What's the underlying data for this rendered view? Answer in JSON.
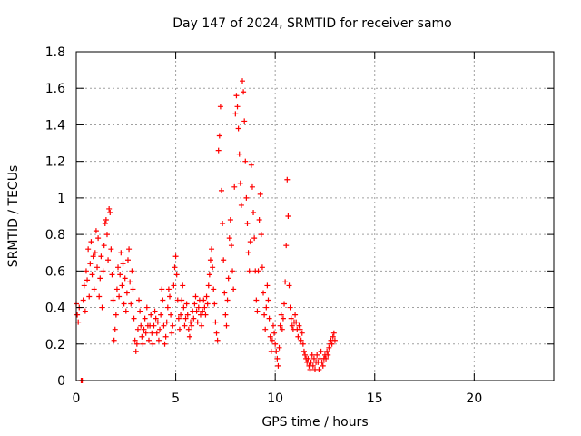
{
  "chart_data": {
    "type": "scatter",
    "title": "Day 147 of 2024, SRMTID for receiver samo",
    "xlabel": "GPS time / hours",
    "ylabel": "SRMTID / TECUs",
    "xlim": [
      0,
      24
    ],
    "ylim": [
      0,
      1.8
    ],
    "xticks": [
      0,
      5,
      10,
      15,
      20
    ],
    "yticks": [
      0,
      0.2,
      0.4,
      0.6,
      0.8,
      1,
      1.2,
      1.4,
      1.6,
      1.8
    ],
    "xtick_labels": [
      "0",
      "5",
      "10",
      "15",
      "20"
    ],
    "ytick_labels": [
      "0",
      "0.2",
      "0.4",
      "0.6",
      "0.8",
      "1",
      "1.2",
      "1.4",
      "1.6",
      "1.8"
    ],
    "grid": true,
    "marker": "+",
    "color": "#ff0000",
    "series": [
      {
        "name": "SRMTID",
        "points": [
          [
            0.0,
            0.42
          ],
          [
            0.05,
            0.36
          ],
          [
            0.1,
            0.32
          ],
          [
            0.15,
            0.4
          ],
          [
            0.25,
            0.0
          ],
          [
            0.3,
            0.0
          ],
          [
            0.35,
            0.44
          ],
          [
            0.4,
            0.52
          ],
          [
            0.45,
            0.38
          ],
          [
            0.5,
            0.6
          ],
          [
            0.55,
            0.55
          ],
          [
            0.6,
            0.72
          ],
          [
            0.65,
            0.46
          ],
          [
            0.7,
            0.64
          ],
          [
            0.75,
            0.76
          ],
          [
            0.8,
            0.58
          ],
          [
            0.85,
            0.68
          ],
          [
            0.9,
            0.5
          ],
          [
            0.95,
            0.7
          ],
          [
            1.0,
            0.82
          ],
          [
            1.05,
            0.62
          ],
          [
            1.1,
            0.78
          ],
          [
            1.15,
            0.46
          ],
          [
            1.2,
            0.56
          ],
          [
            1.25,
            0.68
          ],
          [
            1.3,
            0.4
          ],
          [
            1.35,
            0.6
          ],
          [
            1.4,
            0.74
          ],
          [
            1.45,
            0.86
          ],
          [
            1.5,
            0.88
          ],
          [
            1.55,
            0.8
          ],
          [
            1.6,
            0.66
          ],
          [
            1.65,
            0.94
          ],
          [
            1.7,
            0.92
          ],
          [
            1.75,
            0.72
          ],
          [
            1.8,
            0.58
          ],
          [
            1.85,
            0.44
          ],
          [
            1.9,
            0.22
          ],
          [
            1.95,
            0.28
          ],
          [
            2.0,
            0.36
          ],
          [
            2.05,
            0.5
          ],
          [
            2.1,
            0.62
          ],
          [
            2.15,
            0.46
          ],
          [
            2.2,
            0.58
          ],
          [
            2.25,
            0.7
          ],
          [
            2.3,
            0.52
          ],
          [
            2.35,
            0.64
          ],
          [
            2.4,
            0.42
          ],
          [
            2.45,
            0.56
          ],
          [
            2.5,
            0.38
          ],
          [
            2.55,
            0.48
          ],
          [
            2.6,
            0.66
          ],
          [
            2.65,
            0.72
          ],
          [
            2.7,
            0.54
          ],
          [
            2.75,
            0.42
          ],
          [
            2.8,
            0.6
          ],
          [
            2.85,
            0.5
          ],
          [
            2.9,
            0.34
          ],
          [
            2.95,
            0.22
          ],
          [
            3.0,
            0.16
          ],
          [
            3.05,
            0.2
          ],
          [
            3.1,
            0.28
          ],
          [
            3.15,
            0.44
          ],
          [
            3.2,
            0.38
          ],
          [
            3.25,
            0.3
          ],
          [
            3.3,
            0.24
          ],
          [
            3.35,
            0.2
          ],
          [
            3.4,
            0.28
          ],
          [
            3.45,
            0.34
          ],
          [
            3.5,
            0.26
          ],
          [
            3.55,
            0.4
          ],
          [
            3.6,
            0.3
          ],
          [
            3.65,
            0.22
          ],
          [
            3.7,
            0.3
          ],
          [
            3.75,
            0.36
          ],
          [
            3.8,
            0.26
          ],
          [
            3.85,
            0.2
          ],
          [
            3.9,
            0.3
          ],
          [
            3.95,
            0.38
          ],
          [
            4.0,
            0.34
          ],
          [
            4.05,
            0.26
          ],
          [
            4.1,
            0.32
          ],
          [
            4.15,
            0.22
          ],
          [
            4.2,
            0.28
          ],
          [
            4.25,
            0.36
          ],
          [
            4.3,
            0.5
          ],
          [
            4.35,
            0.44
          ],
          [
            4.4,
            0.3
          ],
          [
            4.45,
            0.2
          ],
          [
            4.5,
            0.24
          ],
          [
            4.55,
            0.32
          ],
          [
            4.6,
            0.4
          ],
          [
            4.65,
            0.5
          ],
          [
            4.7,
            0.46
          ],
          [
            4.75,
            0.36
          ],
          [
            4.8,
            0.26
          ],
          [
            4.85,
            0.3
          ],
          [
            4.9,
            0.52
          ],
          [
            4.95,
            0.62
          ],
          [
            5.0,
            0.68
          ],
          [
            5.05,
            0.58
          ],
          [
            5.1,
            0.44
          ],
          [
            5.15,
            0.34
          ],
          [
            5.2,
            0.28
          ],
          [
            5.25,
            0.36
          ],
          [
            5.3,
            0.44
          ],
          [
            5.35,
            0.52
          ],
          [
            5.4,
            0.4
          ],
          [
            5.45,
            0.3
          ],
          [
            5.5,
            0.34
          ],
          [
            5.55,
            0.42
          ],
          [
            5.6,
            0.36
          ],
          [
            5.65,
            0.28
          ],
          [
            5.7,
            0.24
          ],
          [
            5.75,
            0.32
          ],
          [
            5.8,
            0.3
          ],
          [
            5.85,
            0.38
          ],
          [
            5.9,
            0.34
          ],
          [
            5.95,
            0.42
          ],
          [
            6.0,
            0.46
          ],
          [
            6.05,
            0.38
          ],
          [
            6.1,
            0.32
          ],
          [
            6.15,
            0.4
          ],
          [
            6.2,
            0.44
          ],
          [
            6.25,
            0.36
          ],
          [
            6.3,
            0.3
          ],
          [
            6.35,
            0.38
          ],
          [
            6.4,
            0.44
          ],
          [
            6.45,
            0.4
          ],
          [
            6.5,
            0.36
          ],
          [
            6.55,
            0.46
          ],
          [
            6.6,
            0.42
          ],
          [
            6.65,
            0.52
          ],
          [
            6.7,
            0.58
          ],
          [
            6.75,
            0.66
          ],
          [
            6.8,
            0.72
          ],
          [
            6.85,
            0.62
          ],
          [
            6.9,
            0.5
          ],
          [
            6.95,
            0.42
          ],
          [
            7.0,
            0.32
          ],
          [
            7.05,
            0.26
          ],
          [
            7.1,
            0.22
          ],
          [
            7.15,
            1.26
          ],
          [
            7.2,
            1.34
          ],
          [
            7.25,
            1.5
          ],
          [
            7.3,
            1.04
          ],
          [
            7.35,
            0.86
          ],
          [
            7.4,
            0.66
          ],
          [
            7.45,
            0.48
          ],
          [
            7.5,
            0.36
          ],
          [
            7.55,
            0.3
          ],
          [
            7.6,
            0.44
          ],
          [
            7.65,
            0.56
          ],
          [
            7.7,
            0.78
          ],
          [
            7.75,
            0.88
          ],
          [
            7.8,
            0.74
          ],
          [
            7.85,
            0.6
          ],
          [
            7.9,
            0.5
          ],
          [
            7.95,
            1.06
          ],
          [
            8.0,
            1.46
          ],
          [
            8.05,
            1.56
          ],
          [
            8.1,
            1.5
          ],
          [
            8.15,
            1.38
          ],
          [
            8.2,
            1.24
          ],
          [
            8.25,
            1.08
          ],
          [
            8.3,
            0.96
          ],
          [
            8.35,
            1.64
          ],
          [
            8.4,
            1.58
          ],
          [
            8.45,
            1.42
          ],
          [
            8.5,
            1.2
          ],
          [
            8.55,
            1.0
          ],
          [
            8.6,
            0.86
          ],
          [
            8.65,
            0.7
          ],
          [
            8.7,
            0.6
          ],
          [
            8.75,
            0.76
          ],
          [
            8.8,
            1.18
          ],
          [
            8.85,
            1.06
          ],
          [
            8.9,
            0.92
          ],
          [
            8.95,
            0.78
          ],
          [
            9.0,
            0.6
          ],
          [
            9.05,
            0.44
          ],
          [
            9.1,
            0.38
          ],
          [
            9.15,
            0.6
          ],
          [
            9.2,
            0.88
          ],
          [
            9.25,
            1.02
          ],
          [
            9.3,
            0.8
          ],
          [
            9.35,
            0.62
          ],
          [
            9.4,
            0.48
          ],
          [
            9.45,
            0.36
          ],
          [
            9.5,
            0.28
          ],
          [
            9.55,
            0.4
          ],
          [
            9.6,
            0.52
          ],
          [
            9.65,
            0.44
          ],
          [
            9.7,
            0.34
          ],
          [
            9.75,
            0.24
          ],
          [
            9.8,
            0.16
          ],
          [
            9.85,
            0.22
          ],
          [
            9.9,
            0.3
          ],
          [
            9.95,
            0.26
          ],
          [
            10.0,
            0.2
          ],
          [
            10.05,
            0.16
          ],
          [
            10.1,
            0.12
          ],
          [
            10.15,
            0.08
          ],
          [
            10.2,
            0.18
          ],
          [
            10.25,
            0.3
          ],
          [
            10.3,
            0.36
          ],
          [
            10.35,
            0.28
          ],
          [
            10.4,
            0.34
          ],
          [
            10.45,
            0.42
          ],
          [
            10.5,
            0.54
          ],
          [
            10.55,
            0.74
          ],
          [
            10.6,
            1.1
          ],
          [
            10.65,
            0.9
          ],
          [
            10.7,
            0.52
          ],
          [
            10.75,
            0.4
          ],
          [
            10.8,
            0.34
          ],
          [
            10.85,
            0.3
          ],
          [
            10.9,
            0.28
          ],
          [
            10.95,
            0.32
          ],
          [
            11.0,
            0.36
          ],
          [
            11.05,
            0.32
          ],
          [
            11.1,
            0.28
          ],
          [
            11.15,
            0.24
          ],
          [
            11.2,
            0.3
          ],
          [
            11.25,
            0.28
          ],
          [
            11.3,
            0.22
          ],
          [
            11.35,
            0.26
          ],
          [
            11.4,
            0.2
          ],
          [
            11.45,
            0.16
          ],
          [
            11.5,
            0.14
          ],
          [
            11.55,
            0.12
          ],
          [
            11.6,
            0.1
          ],
          [
            11.65,
            0.12
          ],
          [
            11.7,
            0.08
          ],
          [
            11.75,
            0.06
          ],
          [
            11.8,
            0.1
          ],
          [
            11.85,
            0.14
          ],
          [
            11.9,
            0.08
          ],
          [
            11.95,
            0.12
          ],
          [
            12.0,
            0.06
          ],
          [
            12.05,
            0.1
          ],
          [
            12.1,
            0.14
          ],
          [
            12.15,
            0.1
          ],
          [
            12.2,
            0.06
          ],
          [
            12.25,
            0.12
          ],
          [
            12.3,
            0.16
          ],
          [
            12.35,
            0.1
          ],
          [
            12.4,
            0.08
          ],
          [
            12.45,
            0.12
          ],
          [
            12.5,
            0.14
          ],
          [
            12.55,
            0.12
          ],
          [
            12.6,
            0.16
          ],
          [
            12.65,
            0.14
          ],
          [
            12.7,
            0.18
          ],
          [
            12.75,
            0.2
          ],
          [
            12.8,
            0.22
          ],
          [
            12.85,
            0.2
          ],
          [
            12.9,
            0.24
          ],
          [
            12.95,
            0.26
          ],
          [
            13.0,
            0.22
          ]
        ]
      }
    ]
  }
}
